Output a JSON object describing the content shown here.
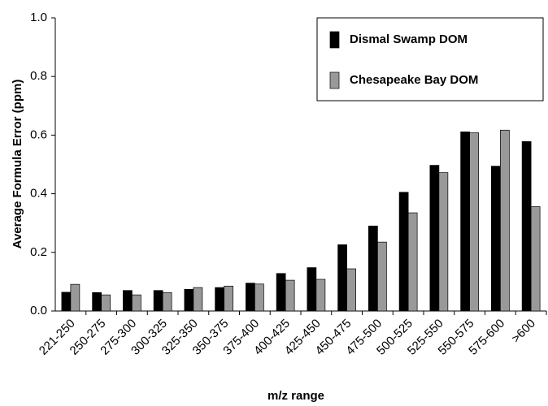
{
  "chart_data": {
    "type": "bar",
    "x_label": "m/z range",
    "y_label": "Average Formula Error (ppm)",
    "categories": [
      "221-250",
      "250-275",
      "275-300",
      "300-325",
      "325-350",
      "350-375",
      "375-400",
      "400-425",
      "425-450",
      "450-475",
      "475-500",
      "500-525",
      "525-550",
      "550-575",
      "575-600",
      ">600"
    ],
    "series": [
      {
        "name": "Dismal Swamp DOM",
        "color": "#000000",
        "values": [
          0.064,
          0.063,
          0.07,
          0.07,
          0.074,
          0.08,
          0.095,
          0.128,
          0.148,
          0.226,
          0.29,
          0.405,
          0.497,
          0.611,
          0.494,
          0.578
        ]
      },
      {
        "name": "Chesapeake Bay DOM",
        "color": "#999999",
        "values": [
          0.091,
          0.055,
          0.055,
          0.063,
          0.08,
          0.085,
          0.092,
          0.105,
          0.108,
          0.144,
          0.235,
          0.335,
          0.472,
          0.608,
          0.617,
          0.356
        ]
      }
    ],
    "ylim": [
      0,
      1.0
    ],
    "yticks": [
      {
        "value": 0,
        "label": "0.0"
      },
      0.2,
      0.4,
      0.6,
      0.8,
      {
        "value": 1.0,
        "label": "1.0"
      }
    ],
    "legend": "upper right",
    "grid": false
  }
}
